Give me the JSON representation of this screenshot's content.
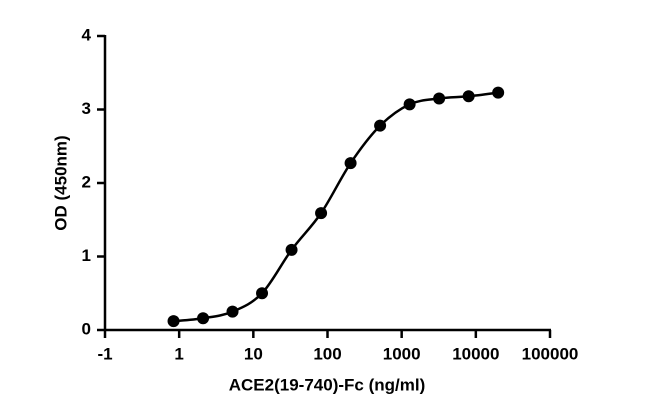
{
  "chart_data": {
    "type": "scatter",
    "x_label": "ACE2(19-740)-Fc (ng/ml)",
    "y_label": "OD (450nm)",
    "x": [
      0.84,
      2.1,
      5.24,
      13.1,
      32.77,
      81.92,
      204.8,
      512,
      1280,
      3200,
      8000,
      20000
    ],
    "values": [
      0.12,
      0.16,
      0.25,
      0.5,
      1.09,
      1.59,
      2.27,
      2.78,
      3.07,
      3.15,
      3.18,
      3.23
    ],
    "color": "#000000",
    "xscale": "log",
    "fit_curve": true,
    "xlim": [
      0.1,
      100000
    ],
    "xticks": [
      {
        "value": 0.1,
        "label": "-1"
      },
      1,
      10,
      100,
      1000,
      10000,
      100000
    ],
    "ylim": [
      0,
      4
    ],
    "yticks": [
      0,
      1,
      2,
      3,
      4
    ]
  }
}
